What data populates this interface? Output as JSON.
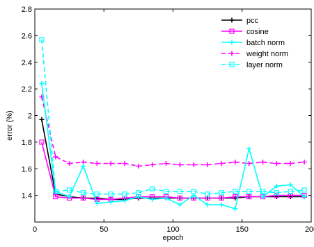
{
  "chart_data": {
    "type": "line",
    "title": "",
    "xlabel": "epoch",
    "ylabel": "error (%)",
    "xlim": [
      0,
      200
    ],
    "ylim": [
      1.2,
      2.8
    ],
    "xticks": [
      0,
      50,
      100,
      150,
      200
    ],
    "yticks": [
      1.4,
      1.6,
      1.8,
      2.0,
      2.2,
      2.4,
      2.6,
      2.8
    ],
    "ytick_labels": [
      "1.4",
      "1.6",
      "1.8",
      "2",
      "2.2",
      "2.4",
      "2.6",
      "2.8"
    ],
    "grid": false,
    "legend_position": "top-right",
    "x": [
      5,
      15,
      25,
      35,
      45,
      55,
      65,
      75,
      85,
      95,
      105,
      115,
      125,
      135,
      145,
      155,
      165,
      175,
      185,
      195
    ],
    "series": [
      {
        "name": "pcc",
        "color": "#000000",
        "line_style": "solid",
        "marker": "plus",
        "values": [
          1.97,
          1.41,
          1.39,
          1.38,
          1.38,
          1.37,
          1.37,
          1.38,
          1.38,
          1.38,
          1.38,
          1.38,
          1.38,
          1.38,
          1.38,
          1.39,
          1.39,
          1.39,
          1.39,
          1.39
        ]
      },
      {
        "name": "cosine",
        "color": "#ff00ff",
        "line_style": "solid",
        "marker": "square",
        "values": [
          1.8,
          1.39,
          1.38,
          1.38,
          1.37,
          1.37,
          1.38,
          1.39,
          1.39,
          1.39,
          1.38,
          1.38,
          1.38,
          1.38,
          1.39,
          1.39,
          1.39,
          1.4,
          1.4,
          1.4
        ]
      },
      {
        "name": "batch norm",
        "color": "#00ffff",
        "line_style": "solid",
        "marker": "plus",
        "values": [
          2.24,
          1.43,
          1.39,
          1.62,
          1.34,
          1.35,
          1.36,
          1.39,
          1.37,
          1.38,
          1.33,
          1.4,
          1.33,
          1.33,
          1.3,
          1.75,
          1.39,
          1.47,
          1.48,
          1.39
        ]
      },
      {
        "name": "weight norm",
        "color": "#ff00ff",
        "line_style": "dashed",
        "marker": "plus",
        "values": [
          2.14,
          1.69,
          1.64,
          1.65,
          1.64,
          1.64,
          1.64,
          1.62,
          1.63,
          1.64,
          1.63,
          1.63,
          1.63,
          1.64,
          1.65,
          1.64,
          1.65,
          1.64,
          1.64,
          1.65
        ]
      },
      {
        "name": "layer norm",
        "color": "#00ffff",
        "line_style": "dashed",
        "marker": "square",
        "values": [
          2.57,
          1.43,
          1.44,
          1.42,
          1.41,
          1.41,
          1.41,
          1.42,
          1.45,
          1.43,
          1.43,
          1.43,
          1.41,
          1.42,
          1.43,
          1.43,
          1.43,
          1.42,
          1.43,
          1.44
        ]
      }
    ]
  }
}
